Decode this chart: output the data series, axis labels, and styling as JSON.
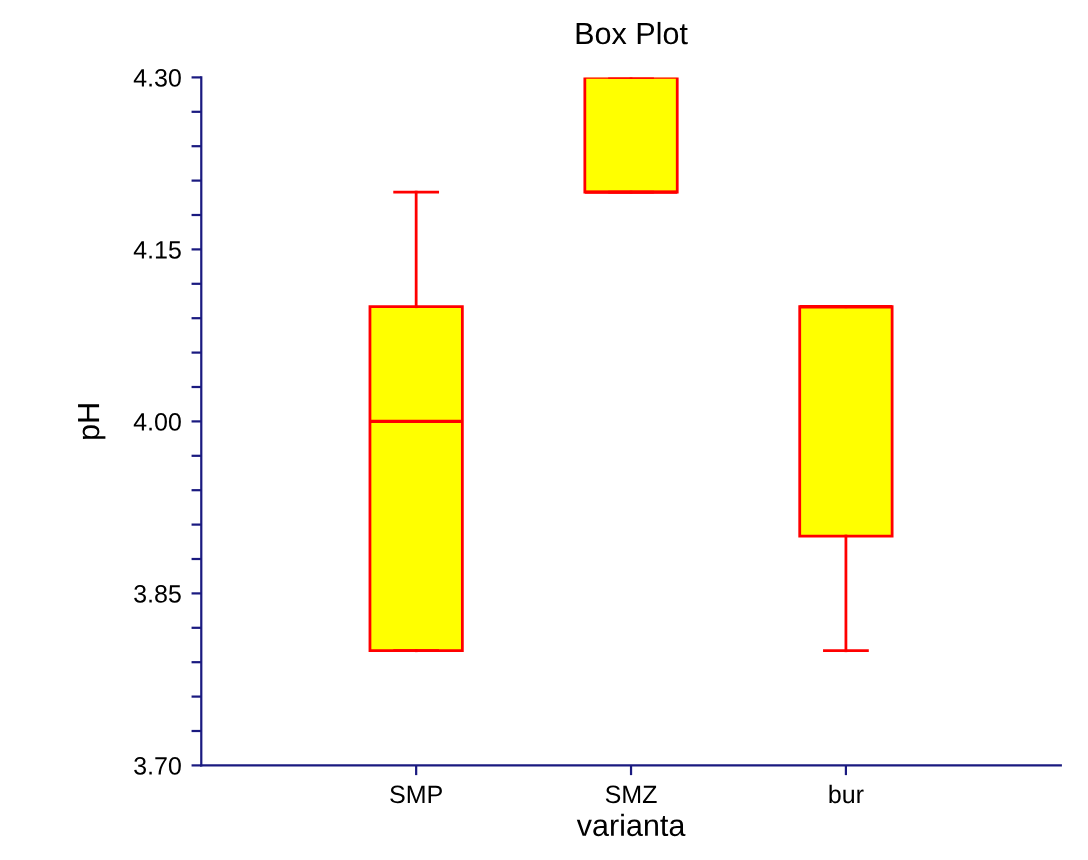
{
  "chart_data": {
    "type": "box",
    "title": "Box Plot",
    "xlabel": "varianta",
    "ylabel": "pH",
    "categories": [
      "SMP",
      "SMZ",
      "bur"
    ],
    "boxes": [
      {
        "low": 3.8,
        "q1": 3.8,
        "median": 4.0,
        "q3": 4.1,
        "high": 4.2
      },
      {
        "low": 4.2,
        "q1": 4.2,
        "median": 4.2,
        "q3": 4.3,
        "high": 4.3
      },
      {
        "low": 3.8,
        "q1": 3.9,
        "median": 4.1,
        "q3": 4.1,
        "high": 4.1
      }
    ],
    "color": "#ffff00",
    "ylim": [
      3.7,
      4.3
    ],
    "yticks": [
      {
        "value": 3.7,
        "label": "3.70"
      },
      {
        "value": 3.73,
        "label": null
      },
      {
        "value": 3.76,
        "label": null
      },
      {
        "value": 3.79,
        "label": null
      },
      {
        "value": 3.82,
        "label": null
      },
      {
        "value": 3.85,
        "label": "3.85"
      },
      {
        "value": 3.88,
        "label": null
      },
      {
        "value": 3.91,
        "label": null
      },
      {
        "value": 3.94,
        "label": null
      },
      {
        "value": 3.97,
        "label": null
      },
      {
        "value": 4.0,
        "label": "4.00"
      },
      {
        "value": 4.03,
        "label": null
      },
      {
        "value": 4.06,
        "label": null
      },
      {
        "value": 4.09,
        "label": null
      },
      {
        "value": 4.12,
        "label": null
      },
      {
        "value": 4.15,
        "label": "4.15"
      },
      {
        "value": 4.18,
        "label": null
      },
      {
        "value": 4.21,
        "label": null
      },
      {
        "value": 4.24,
        "label": null
      },
      {
        "value": 4.27,
        "label": null
      },
      {
        "value": 4.3,
        "label": "4.30"
      }
    ],
    "grid": false,
    "legend": false
  }
}
